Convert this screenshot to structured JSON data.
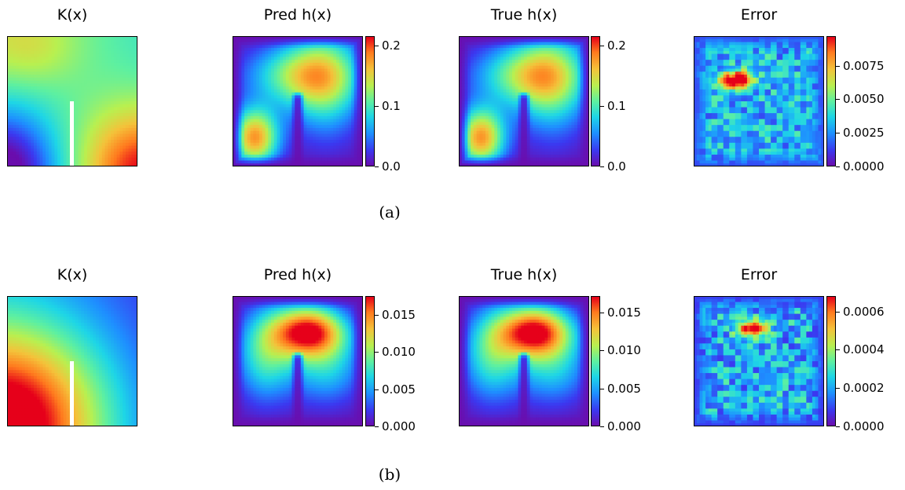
{
  "chart_data": [
    {
      "type": "heatmap",
      "caption": "(a)",
      "panels": [
        {
          "title": "K(x)",
          "colorbar": false,
          "field": "k_a"
        },
        {
          "title": "Pred h(x)",
          "colorbar": true,
          "field": "h_a",
          "cmin": 0.0,
          "cmax": 0.215,
          "ticks": [
            "0.0",
            "0.1",
            "0.2"
          ],
          "tick_values": [
            0.0,
            0.1,
            0.2
          ]
        },
        {
          "title": "True h(x)",
          "colorbar": true,
          "field": "h_a",
          "cmin": 0.0,
          "cmax": 0.215,
          "ticks": [
            "0.0",
            "0.1",
            "0.2"
          ],
          "tick_values": [
            0.0,
            0.1,
            0.2
          ]
        },
        {
          "title": "Error",
          "colorbar": true,
          "field": "err_a",
          "cmin": 0.0,
          "cmax": 0.0097,
          "ticks": [
            "0.0000",
            "0.0025",
            "0.0050",
            "0.0075"
          ],
          "tick_values": [
            0.0,
            0.0025,
            0.005,
            0.0075
          ]
        }
      ]
    },
    {
      "type": "heatmap",
      "caption": "(b)",
      "panels": [
        {
          "title": "K(x)",
          "colorbar": false,
          "field": "k_b"
        },
        {
          "title": "Pred h(x)",
          "colorbar": true,
          "field": "h_b",
          "cmin": 0.0,
          "cmax": 0.0175,
          "ticks": [
            "0.000",
            "0.005",
            "0.010",
            "0.015"
          ],
          "tick_values": [
            0.0,
            0.005,
            0.01,
            0.015
          ]
        },
        {
          "title": "True h(x)",
          "colorbar": true,
          "field": "h_b",
          "cmin": 0.0,
          "cmax": 0.0172,
          "ticks": [
            "0.000",
            "0.005",
            "0.010",
            "0.015"
          ],
          "tick_values": [
            0.0,
            0.005,
            0.01,
            0.015
          ]
        },
        {
          "title": "Error",
          "colorbar": true,
          "field": "err_b",
          "cmin": 0.0,
          "cmax": 0.00068,
          "ticks": [
            "0.0000",
            "0.0002",
            "0.0004",
            "0.0006"
          ],
          "tick_values": [
            0.0,
            0.0002,
            0.0004,
            0.0006
          ]
        }
      ]
    }
  ],
  "colormap": [
    "#6a0dad",
    "#3b38f0",
    "#1e8fff",
    "#1ed6e6",
    "#5ef0a0",
    "#b8f050",
    "#f4c23a",
    "#ff7a1e",
    "#e6001a"
  ]
}
